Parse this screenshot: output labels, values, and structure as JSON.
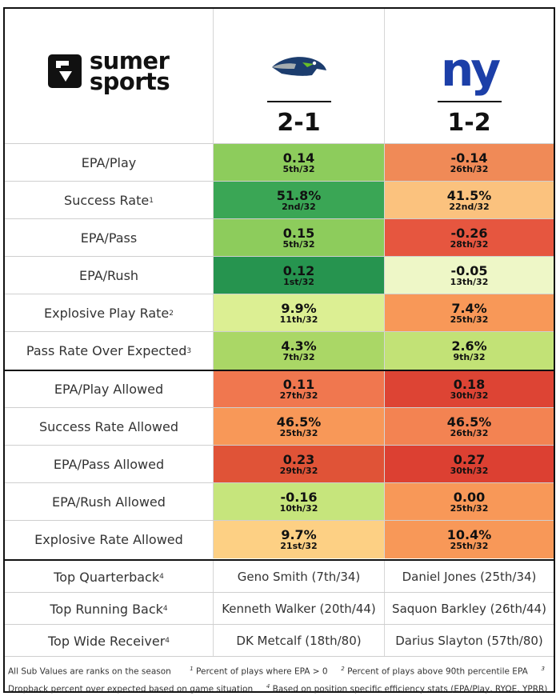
{
  "header": {
    "brand_line1": "sumer",
    "brand_line2": "sports",
    "team1": {
      "name": "Seahawks",
      "record": "2-1"
    },
    "team2": {
      "name": "Giants",
      "logo_text": "ny",
      "record": "1-2"
    }
  },
  "stats": [
    {
      "label": "EPA/Play",
      "sup": "",
      "t1": {
        "v": "0.14",
        "r": "5th/32",
        "color": "#8dcc5c"
      },
      "t2": {
        "v": "-0.14",
        "r": "26th/32",
        "color": "#f08a57"
      }
    },
    {
      "label": "Success Rate",
      "sup": "1",
      "t1": {
        "v": "51.8%",
        "r": "2nd/32",
        "color": "#3aa655"
      },
      "t2": {
        "v": "41.5%",
        "r": "22nd/32",
        "color": "#fbc27e"
      }
    },
    {
      "label": "EPA/Pass",
      "sup": "",
      "t1": {
        "v": "0.15",
        "r": "5th/32",
        "color": "#8dcc5c"
      },
      "t2": {
        "v": "-0.26",
        "r": "28th/32",
        "color": "#e6563f"
      }
    },
    {
      "label": "EPA/Rush",
      "sup": "",
      "t1": {
        "v": "0.12",
        "r": "1st/32",
        "color": "#26944f"
      },
      "t2": {
        "v": "-0.05",
        "r": "13th/32",
        "color": "#eef7c7"
      }
    },
    {
      "label": "Explosive Play Rate",
      "sup": "2",
      "t1": {
        "v": "9.9%",
        "r": "11th/32",
        "color": "#dcef93"
      },
      "t2": {
        "v": "7.4%",
        "r": "25th/32",
        "color": "#f89858"
      }
    },
    {
      "label": "Pass Rate Over Expected",
      "sup": "3",
      "t1": {
        "v": "4.3%",
        "r": "7th/32",
        "color": "#aad766"
      },
      "t2": {
        "v": "2.6%",
        "r": "9th/32",
        "color": "#c2e276"
      }
    },
    {
      "label": "EPA/Play Allowed",
      "sup": "",
      "t1": {
        "v": "0.11",
        "r": "27th/32",
        "color": "#f0774f"
      },
      "t2": {
        "v": "0.18",
        "r": "30th/32",
        "color": "#dd4434"
      }
    },
    {
      "label": "Success Rate Allowed",
      "sup": "",
      "t1": {
        "v": "46.5%",
        "r": "25th/32",
        "color": "#f89858"
      },
      "t2": {
        "v": "46.5%",
        "r": "26th/32",
        "color": "#f38352"
      }
    },
    {
      "label": "EPA/Pass Allowed",
      "sup": "",
      "t1": {
        "v": "0.23",
        "r": "29th/32",
        "color": "#e05337"
      },
      "t2": {
        "v": "0.27",
        "r": "30th/32",
        "color": "#dc4032"
      }
    },
    {
      "label": "EPA/Rush Allowed",
      "sup": "",
      "t1": {
        "v": "-0.16",
        "r": "10th/32",
        "color": "#c6e57c"
      },
      "t2": {
        "v": "0.00",
        "r": "25th/32",
        "color": "#f89858"
      }
    },
    {
      "label": "Explosive Rate Allowed",
      "sup": "",
      "t1": {
        "v": "9.7%",
        "r": "21st/32",
        "color": "#fdd084"
      },
      "t2": {
        "v": "10.4%",
        "r": "25th/32",
        "color": "#f89858"
      }
    }
  ],
  "players": [
    {
      "label": "Top Quarterback",
      "sup": "4",
      "t1": "Geno Smith (7th/34)",
      "t2": "Daniel Jones (25th/34)"
    },
    {
      "label": "Top Running Back",
      "sup": "4",
      "t1": "Kenneth Walker (20th/44)",
      "t2": "Saquon Barkley (26th/44)"
    },
    {
      "label": "Top Wide Receiver",
      "sup": "4",
      "t1": "DK Metcalf (18th/80)",
      "t2": "Darius Slayton (57th/80)"
    }
  ],
  "footer": {
    "intro": "All Sub Values are ranks on the season",
    "n1": "1",
    "t1": "Percent of plays where EPA > 0",
    "n2": "2",
    "t2": "Percent of plays above 90th percentile EPA",
    "n3": "3",
    "t3": "Dropback percent over expected based on game situation",
    "n4": "4",
    "t4": "Based on position specific efficiency stats (EPA/Play, RYOE, YPRR)"
  },
  "colors": {
    "seahawks_blue": "#1c3d6e",
    "seahawks_grey": "#a5acaf",
    "seahawks_green": "#69be28",
    "giants_blue": "#1c3fa8"
  }
}
